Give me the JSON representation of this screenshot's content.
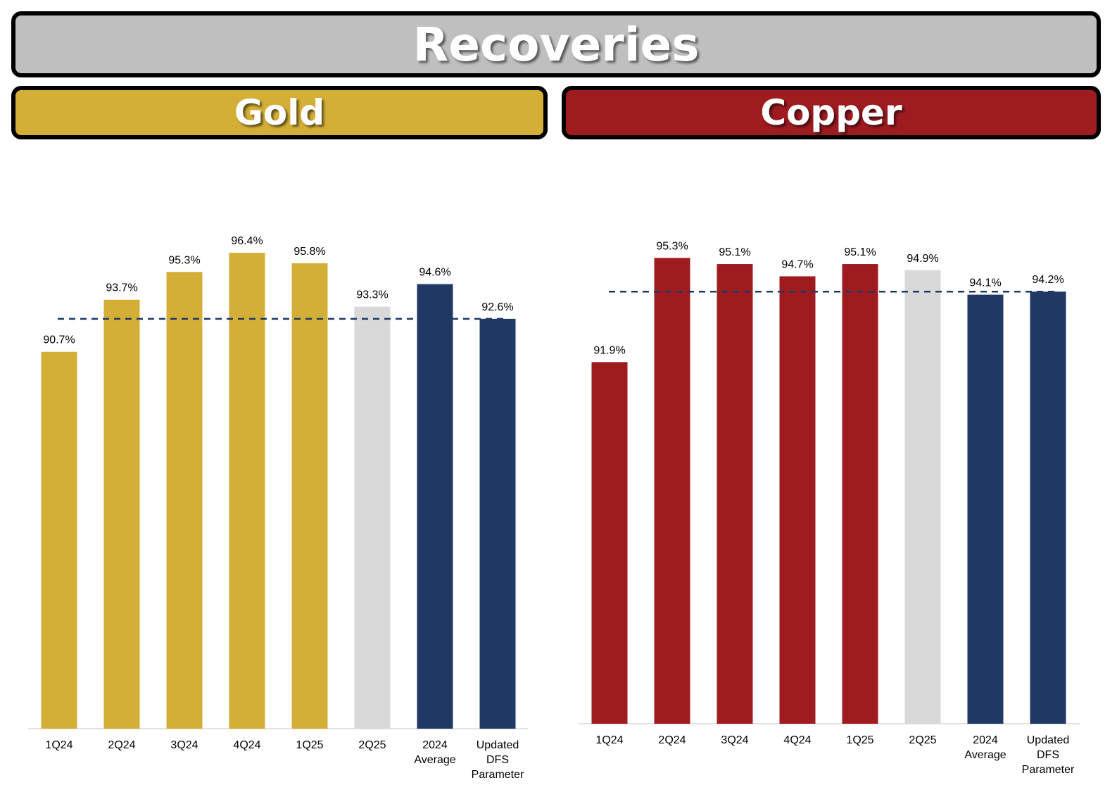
{
  "title": "Recoveries",
  "colors": {
    "gold": "#d4af37",
    "copper": "#9e1b20",
    "forecast": "#d9d9d9",
    "navy": "#1f3864",
    "title_bg": "#bfbfbf"
  },
  "chart_data": [
    {
      "type": "bar",
      "title": "Gold",
      "categories": [
        "1Q24",
        "2Q24",
        "3Q24",
        "4Q24",
        "1Q25",
        "2Q25",
        "2024 Average",
        "Updated DFS Parameter"
      ],
      "values": [
        90.7,
        93.7,
        95.3,
        96.4,
        95.8,
        93.3,
        94.6,
        92.6
      ],
      "labels": [
        "90.7%",
        "93.7%",
        "95.3%",
        "96.4%",
        "95.8%",
        "93.3%",
        "94.6%",
        "92.6%"
      ],
      "bar_colors": [
        "#d4af37",
        "#d4af37",
        "#d4af37",
        "#d4af37",
        "#d4af37",
        "#d9d9d9",
        "#1f3864",
        "#1f3864"
      ],
      "reference_line": 92.6,
      "ylim": [
        69,
        99
      ],
      "xlabel": "",
      "ylabel": "",
      "grid": false,
      "legend": "none"
    },
    {
      "type": "bar",
      "title": "Copper",
      "categories": [
        "1Q24",
        "2Q24",
        "3Q24",
        "4Q24",
        "1Q25",
        "2Q25",
        "2024 Average",
        "Updated DFS Parameter"
      ],
      "values": [
        91.9,
        95.3,
        95.1,
        94.7,
        95.1,
        94.9,
        94.1,
        94.2
      ],
      "labels": [
        "91.9%",
        "95.3%",
        "95.1%",
        "94.7%",
        "95.1%",
        "94.9%",
        "94.1%",
        "94.2%"
      ],
      "bar_colors": [
        "#9e1b20",
        "#9e1b20",
        "#9e1b20",
        "#9e1b20",
        "#9e1b20",
        "#d9d9d9",
        "#1f3864",
        "#1f3864"
      ],
      "reference_line": 94.2,
      "ylim": [
        80.1,
        97.1
      ],
      "xlabel": "",
      "ylabel": "",
      "grid": false,
      "legend": "none"
    }
  ]
}
